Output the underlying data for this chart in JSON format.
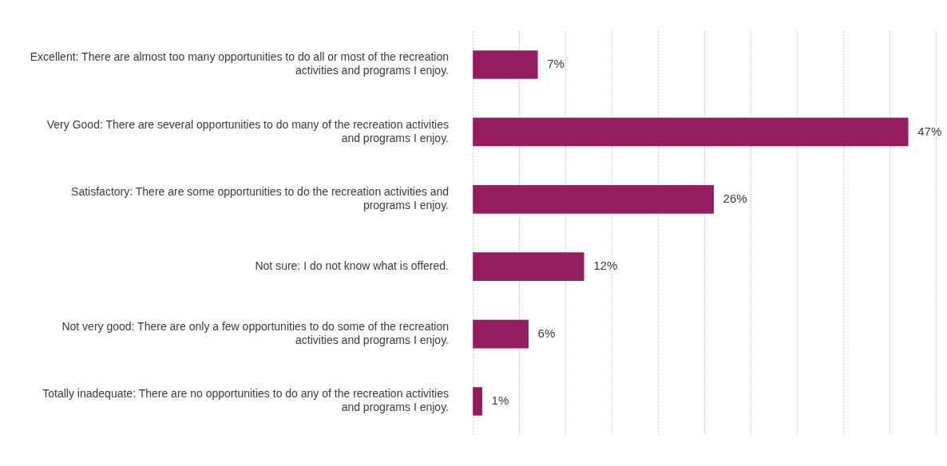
{
  "chart_data": {
    "type": "bar",
    "orientation": "horizontal",
    "categories": [
      "Excellent: There are almost too many opportunities to do all or most of the recreation activities and programs I enjoy.",
      "Very Good: There are several opportunities to do many of the recreation activities and programs I enjoy.",
      "Satisfactory: There are some opportunities to do the recreation activities and programs I enjoy.",
      "Not sure: I do not know what is offered.",
      "Not very good: There are only a few opportunities to do some of the recreation activities and programs I enjoy.",
      "Totally inadequate: There are no opportunities to do any of the recreation activities and programs I enjoy."
    ],
    "values": [
      7,
      47,
      26,
      12,
      6,
      1
    ],
    "value_labels": [
      "7%",
      "47%",
      "26%",
      "12%",
      "6%",
      "1%"
    ],
    "color": "#941c5f",
    "xlim": [
      0,
      50
    ],
    "xticks": [
      {
        "value": 0,
        "label": null
      },
      {
        "value": 5,
        "label": null
      },
      {
        "value": 10,
        "label": null
      },
      {
        "value": 15,
        "label": null
      },
      {
        "value": 20,
        "label": null
      },
      {
        "value": 25,
        "label": null
      },
      {
        "value": 30,
        "label": null
      },
      {
        "value": 35,
        "label": null
      },
      {
        "value": 40,
        "label": null
      },
      {
        "value": 45,
        "label": null
      },
      {
        "value": 50,
        "label": null
      }
    ],
    "grid": "x",
    "legend": false,
    "tick_labels": "y"
  }
}
